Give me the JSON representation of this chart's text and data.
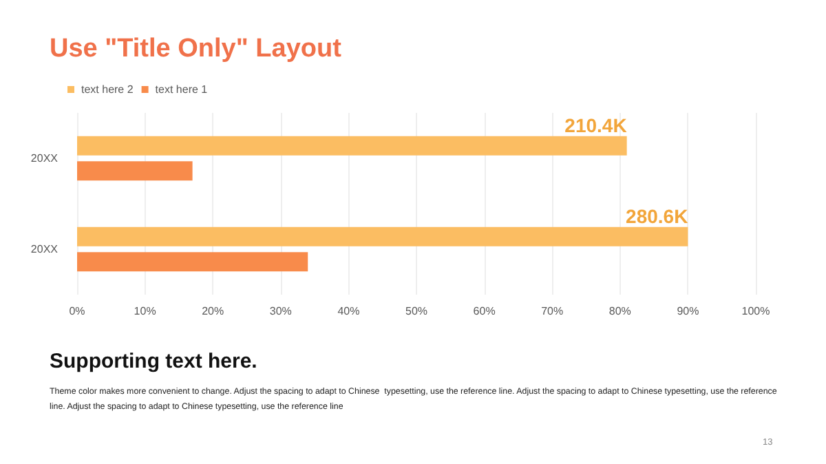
{
  "chart_data": {
    "type": "bar",
    "orientation": "horizontal",
    "title": "Use \"Title Only\" Layout",
    "categories": [
      "20XX",
      "20XX"
    ],
    "series": [
      {
        "name": "text here 2",
        "color": "#fbbd62",
        "values": [
          81,
          90
        ]
      },
      {
        "name": "text here 1",
        "color": "#f88b4b",
        "values": [
          17,
          34
        ]
      }
    ],
    "xlim": [
      0,
      100
    ],
    "xticks": [
      {
        "value": 0,
        "label": "0%"
      },
      {
        "value": 10,
        "label": "10%"
      },
      {
        "value": 20,
        "label": "20%"
      },
      {
        "value": 30,
        "label": "30%"
      },
      {
        "value": 40,
        "label": "40%"
      },
      {
        "value": 50,
        "label": "50%"
      },
      {
        "value": 60,
        "label": "60%"
      },
      {
        "value": 70,
        "label": "70%"
      },
      {
        "value": 80,
        "label": "80%"
      },
      {
        "value": 90,
        "label": "90%"
      },
      {
        "value": 100,
        "label": "100%"
      }
    ],
    "grid": "x",
    "legend": "top left",
    "annotations": [
      "210.4K",
      "280.6K",
      "Supporting text here.",
      "Theme color makes more convenient to change. Adjust the spacing to adapt to Chinese  typesetting, use the reference line. Adjust the spacing to adapt to Chinese typesetting, use the reference line. Adjust the spacing to adapt to Chinese typesetting, use the reference line",
      "13"
    ]
  }
}
